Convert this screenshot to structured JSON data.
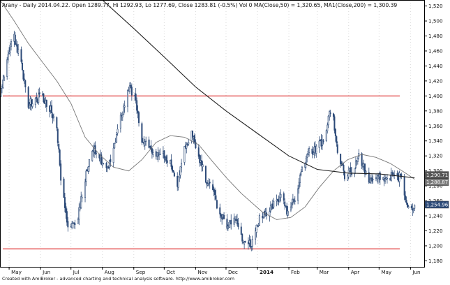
{
  "header": {
    "text": "Arany - Daily 2014.04.22. Open 1289.77, Hi 1292.93, Lo 1277.69, Close 1283.81 (-0.5%) Vol 0 MA(Close,50) = 1,320.65, MA1(Close,200) = 1,300.39"
  },
  "footer": {
    "text": "Created with AmiBroker - advanced charting and technical analysis software. http://www.amibroker.com"
  },
  "colors": {
    "background": "#ffffff",
    "frame": "#000000",
    "candles": "#2c4a78",
    "ma50": "#777777",
    "ma200": "#222222",
    "levels": "#e03a3a",
    "grid": "#d9d9d9",
    "marker_ma200": "#555555",
    "marker_ma50": "#777777",
    "marker_close": "#2c4a78"
  },
  "chart_data": {
    "type": "candlestick",
    "title": "Arany - Daily",
    "x_ticks": [
      "May",
      "Jun",
      "Jul",
      "Aug",
      "Sep",
      "Oct",
      "Nov",
      "Dec",
      "2014",
      "Feb",
      "Mar",
      "Apr",
      "May",
      "Jun"
    ],
    "y_ticks": [
      "1,180",
      "1,200",
      "1,220",
      "1,240",
      "1,260",
      "1,280",
      "1,300",
      "1,320",
      "1,340",
      "1,360",
      "1,380",
      "1,400",
      "1,420",
      "1,440",
      "1,460",
      "1,480",
      "1,500",
      "1,520"
    ],
    "ylim": [
      1172,
      1528
    ],
    "grid": "vertical dotted lines at month boundaries",
    "price_markers": [
      {
        "label": "1,290.71",
        "value": 1290.71,
        "series": "MA1(Close,200)"
      },
      {
        "label": "1,288.87",
        "value": 1288.87,
        "series": "MA(Close,50)"
      },
      {
        "label": "1,254.96",
        "value": 1254.96,
        "series": "Close"
      }
    ],
    "horizontal_levels": [
      1400,
      1196
    ],
    "close_path": [
      {
        "date": "2013-04-22",
        "close": 1400
      },
      {
        "date": "2013-05-03",
        "close": 1470
      },
      {
        "date": "2013-05-06",
        "close": 1480
      },
      {
        "date": "2013-05-13",
        "close": 1440
      },
      {
        "date": "2013-05-20",
        "close": 1390
      },
      {
        "date": "2013-05-27",
        "close": 1395
      },
      {
        "date": "2013-06-03",
        "close": 1400
      },
      {
        "date": "2013-06-10",
        "close": 1385
      },
      {
        "date": "2013-06-17",
        "close": 1360
      },
      {
        "date": "2013-06-21",
        "close": 1290
      },
      {
        "date": "2013-06-28",
        "close": 1220
      },
      {
        "date": "2013-07-08",
        "close": 1240
      },
      {
        "date": "2013-07-15",
        "close": 1290
      },
      {
        "date": "2013-07-22",
        "close": 1330
      },
      {
        "date": "2013-07-29",
        "close": 1320
      },
      {
        "date": "2013-08-05",
        "close": 1300
      },
      {
        "date": "2013-08-12",
        "close": 1330
      },
      {
        "date": "2013-08-19",
        "close": 1370
      },
      {
        "date": "2013-08-27",
        "close": 1410
      },
      {
        "date": "2013-09-02",
        "close": 1400
      },
      {
        "date": "2013-09-09",
        "close": 1340
      },
      {
        "date": "2013-09-16",
        "close": 1330
      },
      {
        "date": "2013-09-23",
        "close": 1320
      },
      {
        "date": "2013-09-30",
        "close": 1320
      },
      {
        "date": "2013-10-07",
        "close": 1310
      },
      {
        "date": "2013-10-14",
        "close": 1280
      },
      {
        "date": "2013-10-21",
        "close": 1330
      },
      {
        "date": "2013-10-28",
        "close": 1350
      },
      {
        "date": "2013-11-04",
        "close": 1320
      },
      {
        "date": "2013-11-11",
        "close": 1290
      },
      {
        "date": "2013-11-18",
        "close": 1270
      },
      {
        "date": "2013-11-25",
        "close": 1245
      },
      {
        "date": "2013-12-02",
        "close": 1225
      },
      {
        "date": "2013-12-09",
        "close": 1240
      },
      {
        "date": "2013-12-16",
        "close": 1210
      },
      {
        "date": "2013-12-20",
        "close": 1200
      },
      {
        "date": "2013-12-27",
        "close": 1205
      },
      {
        "date": "2014-01-03",
        "close": 1235
      },
      {
        "date": "2014-01-10",
        "close": 1245
      },
      {
        "date": "2014-01-17",
        "close": 1255
      },
      {
        "date": "2014-01-24",
        "close": 1265
      },
      {
        "date": "2014-01-31",
        "close": 1245
      },
      {
        "date": "2014-02-07",
        "close": 1265
      },
      {
        "date": "2014-02-14",
        "close": 1305
      },
      {
        "date": "2014-02-21",
        "close": 1325
      },
      {
        "date": "2014-02-28",
        "close": 1330
      },
      {
        "date": "2014-03-07",
        "close": 1340
      },
      {
        "date": "2014-03-14",
        "close": 1380
      },
      {
        "date": "2014-03-17",
        "close": 1370
      },
      {
        "date": "2014-03-21",
        "close": 1330
      },
      {
        "date": "2014-03-28",
        "close": 1295
      },
      {
        "date": "2014-04-04",
        "close": 1300
      },
      {
        "date": "2014-04-11",
        "close": 1320
      },
      {
        "date": "2014-04-22",
        "close": 1283.81
      },
      {
        "date": "2014-04-30",
        "close": 1295
      },
      {
        "date": "2014-05-09",
        "close": 1290
      },
      {
        "date": "2014-05-16",
        "close": 1295
      },
      {
        "date": "2014-05-23",
        "close": 1290
      },
      {
        "date": "2014-05-28",
        "close": 1260
      },
      {
        "date": "2014-06-02",
        "close": 1245
      },
      {
        "date": "2014-06-05",
        "close": 1254.96
      }
    ],
    "series": [
      {
        "name": "MA(Close,50)",
        "points": [
          {
            "date": "2013-04-22",
            "value": 1528
          },
          {
            "date": "2013-05-06",
            "value": 1500
          },
          {
            "date": "2013-05-20",
            "value": 1470
          },
          {
            "date": "2013-06-03",
            "value": 1445
          },
          {
            "date": "2013-06-17",
            "value": 1420
          },
          {
            "date": "2013-07-01",
            "value": 1390
          },
          {
            "date": "2013-07-15",
            "value": 1345
          },
          {
            "date": "2013-07-29",
            "value": 1322
          },
          {
            "date": "2013-08-12",
            "value": 1305
          },
          {
            "date": "2013-08-27",
            "value": 1300
          },
          {
            "date": "2013-09-09",
            "value": 1315
          },
          {
            "date": "2013-09-23",
            "value": 1338
          },
          {
            "date": "2013-10-07",
            "value": 1347
          },
          {
            "date": "2013-10-21",
            "value": 1345
          },
          {
            "date": "2013-11-04",
            "value": 1335
          },
          {
            "date": "2013-11-18",
            "value": 1312
          },
          {
            "date": "2013-12-02",
            "value": 1290
          },
          {
            "date": "2013-12-16",
            "value": 1270
          },
          {
            "date": "2014-01-06",
            "value": 1245
          },
          {
            "date": "2014-01-20",
            "value": 1235
          },
          {
            "date": "2014-02-03",
            "value": 1238
          },
          {
            "date": "2014-02-17",
            "value": 1252
          },
          {
            "date": "2014-03-03",
            "value": 1278
          },
          {
            "date": "2014-03-17",
            "value": 1300
          },
          {
            "date": "2014-03-31",
            "value": 1315
          },
          {
            "date": "2014-04-14",
            "value": 1322
          },
          {
            "date": "2014-04-28",
            "value": 1318
          },
          {
            "date": "2014-05-12",
            "value": 1310
          },
          {
            "date": "2014-05-26",
            "value": 1298
          },
          {
            "date": "2014-06-05",
            "value": 1288.87
          }
        ]
      },
      {
        "name": "MA1(Close,200)",
        "points": [
          {
            "date": "2013-08-01",
            "value": 1528
          },
          {
            "date": "2013-09-01",
            "value": 1490
          },
          {
            "date": "2013-10-01",
            "value": 1452
          },
          {
            "date": "2013-11-01",
            "value": 1412
          },
          {
            "date": "2013-12-01",
            "value": 1380
          },
          {
            "date": "2014-01-01",
            "value": 1350
          },
          {
            "date": "2014-02-01",
            "value": 1320
          },
          {
            "date": "2014-03-01",
            "value": 1302
          },
          {
            "date": "2014-04-01",
            "value": 1297
          },
          {
            "date": "2014-05-01",
            "value": 1296
          },
          {
            "date": "2014-06-05",
            "value": 1290.71
          }
        ]
      }
    ]
  }
}
